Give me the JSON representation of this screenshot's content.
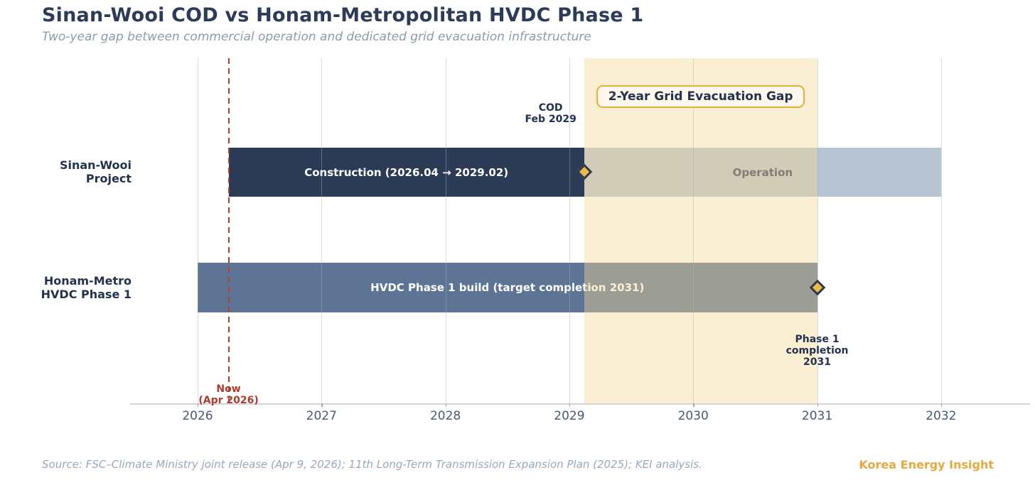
{
  "header": {
    "title": "Sinan-Wooi COD vs Honam-Metropolitan HVDC Phase 1",
    "subtitle": "Two-year gap between commercial operation and dedicated grid evacuation infrastructure"
  },
  "footer": {
    "source": "Source: FSC–Climate Ministry joint release (Apr 9, 2026); 11th Long-Term Transmission Expansion Plan (2025); KEI analysis.",
    "brand": "Korea Energy Insight"
  },
  "colors": {
    "title_text": "#2b3b58",
    "construction_bar": "#2b3a55",
    "operation_bar": "#b8c3d1",
    "hvdc_bar": "#5e7494",
    "gap_band": "#f9f0d6",
    "gap_box_border": "#e5ae3d",
    "diamond_fill": "#edba45",
    "diamond_border": "#2b3a55",
    "now_line": "#c0392b",
    "axis_text": "#46597b",
    "brand_accent": "#e8a93e"
  },
  "chart_data": {
    "type": "gantt",
    "title": "Sinan-Wooi COD vs Honam-Metropolitan HVDC Phase 1",
    "subtitle": "Two-year gap between commercial operation and dedicated grid evacuation infrastructure",
    "x_axis": {
      "range": [
        2025.455,
        2032.718
      ],
      "ticks": [
        2026,
        2027,
        2028,
        2029,
        2030,
        2031,
        2032
      ],
      "grid": true
    },
    "rows": [
      {
        "label_lines": [
          "Sinan-Wooi",
          "Project"
        ],
        "bars": [
          {
            "name": "construction",
            "start": 2026.25,
            "end": 2029.12,
            "color": "#2b3a55",
            "text_color": "#ffffff",
            "label": "Construction (2026.04 → 2029.02)"
          },
          {
            "name": "operation",
            "start": 2029.12,
            "end": 2032.0,
            "color": "#b8c3d1",
            "text_color": "#2e3d58",
            "label": "Operation"
          }
        ]
      },
      {
        "label_lines": [
          "Honam-Metro",
          "HVDC Phase 1"
        ],
        "bars": [
          {
            "name": "hvdc-build",
            "start": 2026.0,
            "end": 2031.0,
            "color": "#5e7494",
            "text_color": "#ffffff",
            "label": "HVDC Phase 1 build (target completion 2031)"
          }
        ]
      }
    ],
    "band": {
      "start": 2029.12,
      "end": 2031.0,
      "label": "2-Year Grid Evacuation Gap"
    },
    "now_line": {
      "x": 2026.25,
      "label_lines": [
        "Now",
        "(Apr 2026)"
      ]
    },
    "milestones": [
      {
        "name": "cod",
        "x": 2029.12,
        "row": 0,
        "label_lines": [
          "COD",
          "Feb 2029"
        ]
      },
      {
        "name": "phase1-completion",
        "x": 2031.0,
        "row": 1,
        "label_lines": [
          "Phase 1",
          "completion",
          "2031"
        ]
      }
    ]
  }
}
